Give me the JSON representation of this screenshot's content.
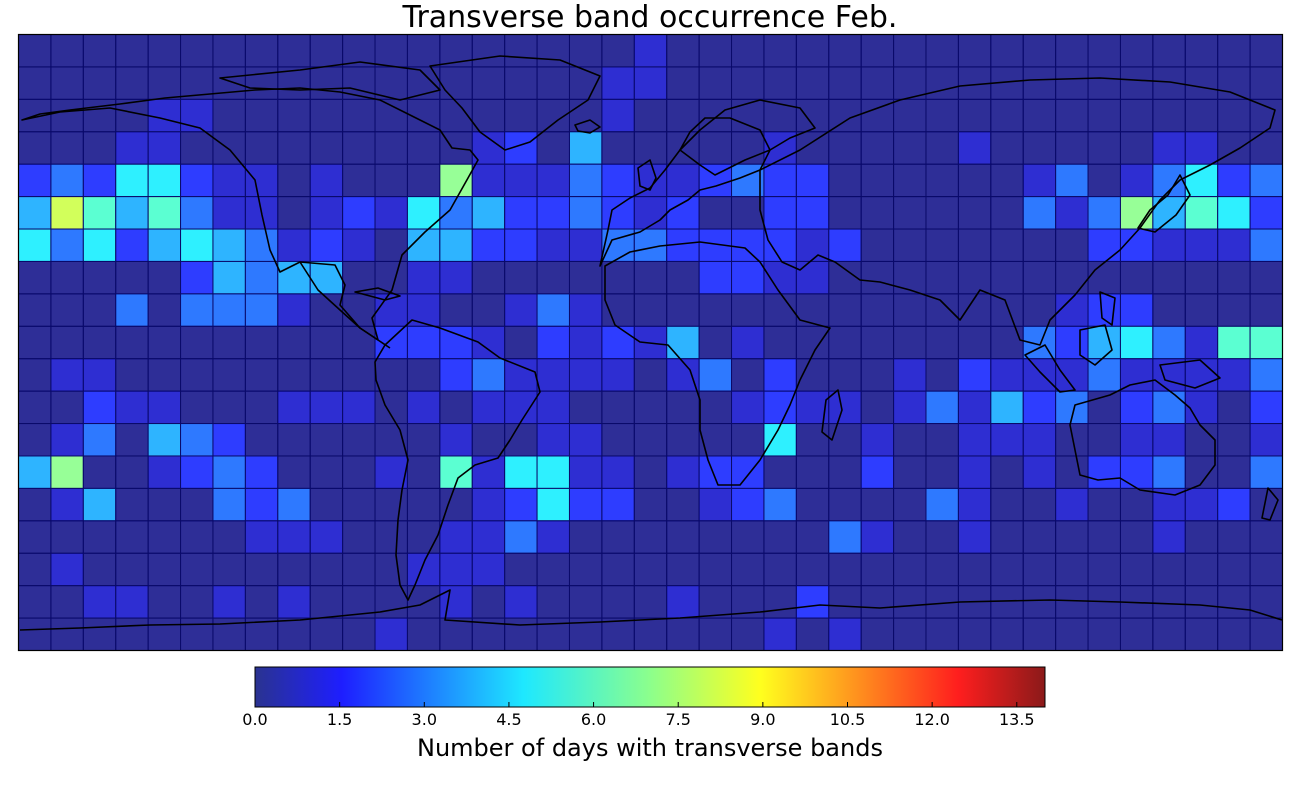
{
  "chart_data": {
    "type": "heatmap",
    "title": "Transverse band occurrence Feb.",
    "colorbar": {
      "label": "Number of days with transverse bands",
      "min": 0,
      "max": 14,
      "ticks": [
        "0.0",
        "1.5",
        "3.0",
        "4.5",
        "6.0",
        "7.5",
        "9.0",
        "10.5",
        "12.0",
        "13.5"
      ],
      "colormap": "jet"
    },
    "grid": {
      "columns": 39,
      "rows": 19,
      "cell_degrees": 10,
      "lon_range": [
        -180,
        180
      ],
      "lat_range": [
        -90,
        90
      ]
    },
    "rows": [
      "000000000000000000010000000000000000000",
      "000000000000000000110000000000000000000",
      "000011000000000000100000000000000000000",
      "000110000000001204000001000001000001100",
      "232552110100071113211232200000013013523",
      "486463110121534223212002200000031374652",
      "535245431210442211332222120000000221113",
      "000002434400110000000221100000000000000",
      "000303331001100131000000000000001220000",
      "000000000002221021214010000000032453166",
      "011000000000023111101302000102111311113",
      "002110001110101110000012110131423023102",
      "013043200000010011000005001001110011001",
      "470012320001061551101220002001010223003",
      "014000323000001252200123000031001001120",
      "000000011100011310000000031001000001000",
      "010000000000111000000000000000000000000",
      "001100101000010100001000200000000000000",
      "000000000001000000000001010000000000000"
    ]
  }
}
